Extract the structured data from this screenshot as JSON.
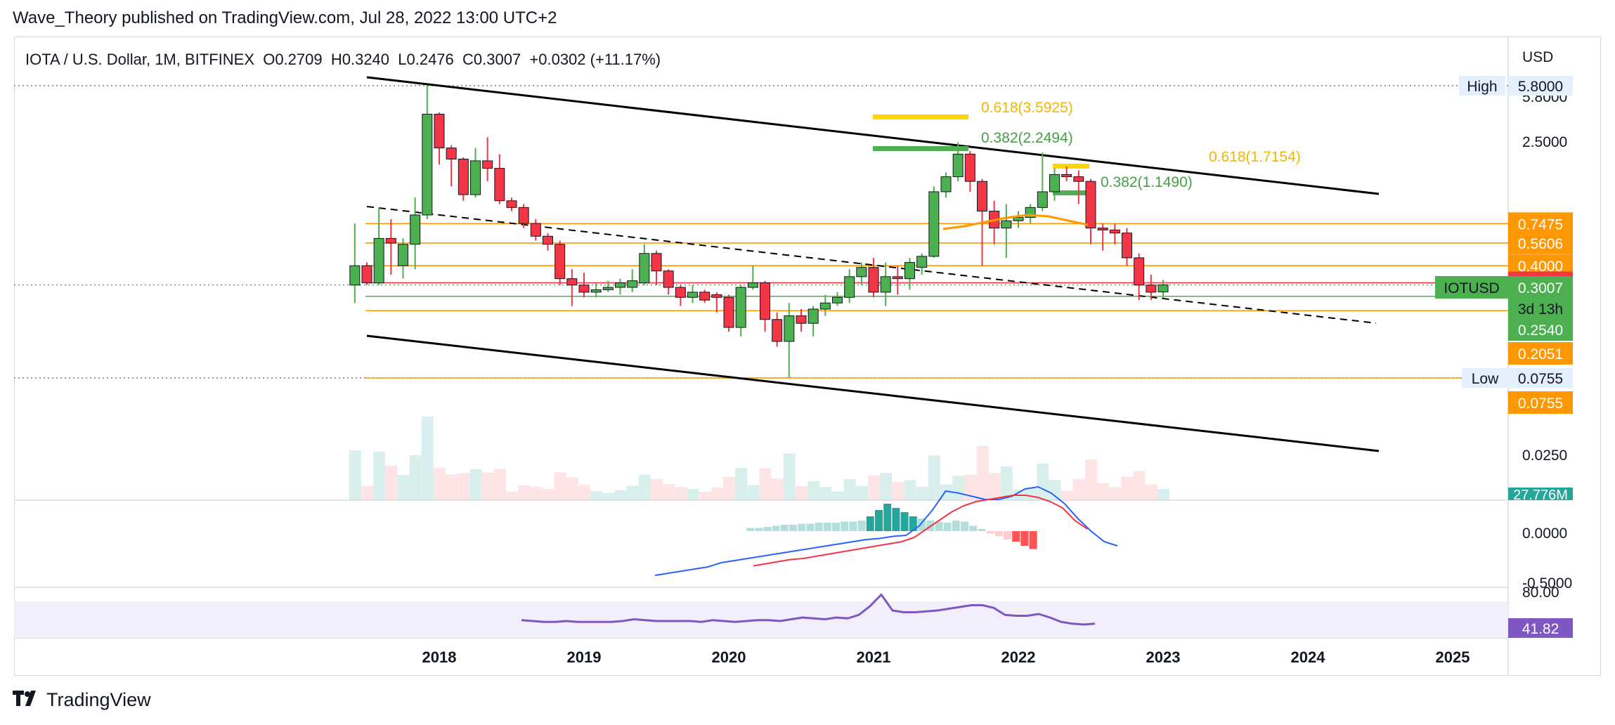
{
  "header": {
    "published": "Wave_Theory published on TradingView.com, Jul 28, 2022 13:00 UTC+2"
  },
  "legend": {
    "text": "IOTA / U.S. Dollar, 1M, BITFINEX  O0.2709  H0.3240  L0.2476  C0.3007  +0.0302 (+11.17%)"
  },
  "footer": {
    "brand": "TradingView",
    "logo": "TV-logo"
  },
  "colors": {
    "up": "#4caf50",
    "down": "#f23645",
    "orange": "#ff9800",
    "fib_yellow": "#ffd600",
    "fib_green": "#4caf50",
    "macd": "#2962ff",
    "signal": "#f23645",
    "rsi": "#7e57c2",
    "rsi_band": "#f2eefb"
  },
  "chart_data": {
    "type": "candlestick",
    "title": "IOTA / U.S. Dollar, 1M, BITFINEX",
    "price_axis": {
      "currency": "USD",
      "scale": "log",
      "ticks": [
        "5.8000",
        "2.5000",
        "0.0250"
      ]
    },
    "x_ticks": [
      "2018",
      "2019",
      "2020",
      "2021",
      "2022",
      "2023",
      "2024",
      "2025"
    ],
    "ohlc": {
      "O": "0.2709",
      "H": "0.3240",
      "L": "0.2476",
      "C": "0.3007",
      "change": "+0.0302 (+11.17%)"
    },
    "candles": [
      {
        "date": "2017-06",
        "o": 0.3,
        "h": 0.75,
        "l": 0.23,
        "c": 0.4
      },
      {
        "date": "2017-07",
        "o": 0.4,
        "h": 0.42,
        "l": 0.3,
        "c": 0.31
      },
      {
        "date": "2017-08",
        "o": 0.31,
        "h": 0.95,
        "l": 0.3,
        "c": 0.6
      },
      {
        "date": "2017-09",
        "o": 0.6,
        "h": 0.8,
        "l": 0.35,
        "c": 0.56
      },
      {
        "date": "2017-10",
        "o": 0.4,
        "h": 0.6,
        "l": 0.33,
        "c": 0.55
      },
      {
        "date": "2017-11",
        "o": 0.55,
        "h": 1.1,
        "l": 0.38,
        "c": 0.85
      },
      {
        "date": "2017-12",
        "o": 0.85,
        "h": 5.8,
        "l": 0.8,
        "c": 3.8
      },
      {
        "date": "2018-01",
        "o": 3.8,
        "h": 3.9,
        "l": 1.8,
        "c": 2.3
      },
      {
        "date": "2018-02",
        "o": 2.3,
        "h": 2.4,
        "l": 1.3,
        "c": 1.95
      },
      {
        "date": "2018-03",
        "o": 1.95,
        "h": 2.0,
        "l": 1.05,
        "c": 1.15
      },
      {
        "date": "2018-04",
        "o": 1.15,
        "h": 2.3,
        "l": 1.1,
        "c": 1.9
      },
      {
        "date": "2018-05",
        "o": 1.9,
        "h": 2.7,
        "l": 1.4,
        "c": 1.7
      },
      {
        "date": "2018-06",
        "o": 1.7,
        "h": 2.1,
        "l": 1.0,
        "c": 1.05
      },
      {
        "date": "2018-07",
        "o": 1.05,
        "h": 1.1,
        "l": 0.9,
        "c": 0.95
      },
      {
        "date": "2018-08",
        "o": 0.95,
        "h": 1.0,
        "l": 0.7,
        "c": 0.75
      },
      {
        "date": "2018-09",
        "o": 0.75,
        "h": 0.8,
        "l": 0.58,
        "c": 0.62
      },
      {
        "date": "2018-10",
        "o": 0.62,
        "h": 0.65,
        "l": 0.5,
        "c": 0.55
      },
      {
        "date": "2018-11",
        "o": 0.55,
        "h": 0.58,
        "l": 0.3,
        "c": 0.33
      },
      {
        "date": "2018-12",
        "o": 0.33,
        "h": 0.38,
        "l": 0.22,
        "c": 0.3
      },
      {
        "date": "2019-01",
        "o": 0.3,
        "h": 0.36,
        "l": 0.25,
        "c": 0.27
      },
      {
        "date": "2019-02",
        "o": 0.27,
        "h": 0.31,
        "l": 0.25,
        "c": 0.28
      },
      {
        "date": "2019-03",
        "o": 0.28,
        "h": 0.32,
        "l": 0.27,
        "c": 0.29
      },
      {
        "date": "2019-04",
        "o": 0.29,
        "h": 0.33,
        "l": 0.26,
        "c": 0.31
      },
      {
        "date": "2019-05",
        "o": 0.29,
        "h": 0.38,
        "l": 0.27,
        "c": 0.32
      },
      {
        "date": "2019-06",
        "o": 0.31,
        "h": 0.55,
        "l": 0.3,
        "c": 0.48
      },
      {
        "date": "2019-07",
        "o": 0.48,
        "h": 0.5,
        "l": 0.3,
        "c": 0.37
      },
      {
        "date": "2019-08",
        "o": 0.37,
        "h": 0.38,
        "l": 0.26,
        "c": 0.29
      },
      {
        "date": "2019-09",
        "o": 0.29,
        "h": 0.3,
        "l": 0.22,
        "c": 0.25
      },
      {
        "date": "2019-10",
        "o": 0.25,
        "h": 0.3,
        "l": 0.23,
        "c": 0.27
      },
      {
        "date": "2019-11",
        "o": 0.27,
        "h": 0.28,
        "l": 0.23,
        "c": 0.24
      },
      {
        "date": "2019-12",
        "o": 0.26,
        "h": 0.27,
        "l": 0.2,
        "c": 0.25
      },
      {
        "date": "2020-01",
        "o": 0.25,
        "h": 0.26,
        "l": 0.15,
        "c": 0.16
      },
      {
        "date": "2020-02",
        "o": 0.16,
        "h": 0.3,
        "l": 0.14,
        "c": 0.29
      },
      {
        "date": "2020-03",
        "o": 0.29,
        "h": 0.4,
        "l": 0.28,
        "c": 0.31
      },
      {
        "date": "2020-04",
        "o": 0.31,
        "h": 0.32,
        "l": 0.15,
        "c": 0.18
      },
      {
        "date": "2020-05",
        "o": 0.18,
        "h": 0.2,
        "l": 0.12,
        "c": 0.13
      },
      {
        "date": "2020-06",
        "o": 0.13,
        "h": 0.23,
        "l": 0.076,
        "c": 0.19
      },
      {
        "date": "2020-07",
        "o": 0.19,
        "h": 0.21,
        "l": 0.15,
        "c": 0.17
      },
      {
        "date": "2020-08",
        "o": 0.17,
        "h": 0.22,
        "l": 0.14,
        "c": 0.21
      },
      {
        "date": "2020-09",
        "o": 0.21,
        "h": 0.26,
        "l": 0.19,
        "c": 0.23
      },
      {
        "date": "2020-10",
        "o": 0.23,
        "h": 0.27,
        "l": 0.22,
        "c": 0.25
      },
      {
        "date": "2020-11",
        "o": 0.25,
        "h": 0.38,
        "l": 0.23,
        "c": 0.34
      },
      {
        "date": "2020-12",
        "o": 0.34,
        "h": 0.42,
        "l": 0.3,
        "c": 0.39
      },
      {
        "date": "2021-01",
        "o": 0.39,
        "h": 0.45,
        "l": 0.25,
        "c": 0.27
      },
      {
        "date": "2021-02",
        "o": 0.27,
        "h": 0.42,
        "l": 0.22,
        "c": 0.34
      },
      {
        "date": "2021-03",
        "o": 0.34,
        "h": 0.4,
        "l": 0.26,
        "c": 0.33
      },
      {
        "date": "2021-04",
        "o": 0.33,
        "h": 0.45,
        "l": 0.28,
        "c": 0.42
      },
      {
        "date": "2021-05",
        "o": 0.39,
        "h": 0.48,
        "l": 0.35,
        "c": 0.46
      },
      {
        "date": "2021-06",
        "o": 0.46,
        "h": 1.3,
        "l": 0.45,
        "c": 1.2
      },
      {
        "date": "2021-07",
        "o": 1.2,
        "h": 1.6,
        "l": 1.1,
        "c": 1.5
      },
      {
        "date": "2021-08",
        "o": 1.5,
        "h": 2.5,
        "l": 1.4,
        "c": 2.1
      },
      {
        "date": "2021-09",
        "o": 2.1,
        "h": 2.2,
        "l": 1.2,
        "c": 1.4
      },
      {
        "date": "2021-10",
        "o": 1.4,
        "h": 1.45,
        "l": 0.4,
        "c": 0.9
      },
      {
        "date": "2021-11",
        "o": 0.9,
        "h": 1.05,
        "l": 0.55,
        "c": 0.7
      },
      {
        "date": "2021-12",
        "o": 0.7,
        "h": 1.0,
        "l": 0.45,
        "c": 0.78
      },
      {
        "date": "2022-01",
        "o": 0.78,
        "h": 0.9,
        "l": 0.7,
        "c": 0.82
      },
      {
        "date": "2022-02",
        "o": 0.82,
        "h": 1.0,
        "l": 0.75,
        "c": 0.95
      },
      {
        "date": "2022-03",
        "o": 0.95,
        "h": 2.15,
        "l": 0.9,
        "c": 1.2
      },
      {
        "date": "2022-04",
        "o": 1.2,
        "h": 1.7,
        "l": 1.05,
        "c": 1.55
      },
      {
        "date": "2022-05",
        "o": 1.55,
        "h": 1.75,
        "l": 1.4,
        "c": 1.5
      },
      {
        "date": "2022-06",
        "o": 1.5,
        "h": 1.65,
        "l": 1.0,
        "c": 1.4
      },
      {
        "date": "2022-07",
        "o": 1.4,
        "h": 1.45,
        "l": 0.55,
        "c": 0.7
      },
      {
        "date": "2022-08",
        "o": 0.7,
        "h": 0.75,
        "l": 0.5,
        "c": 0.68
      },
      {
        "date": "2022-09",
        "o": 0.68,
        "h": 0.75,
        "l": 0.55,
        "c": 0.65
      },
      {
        "date": "2022-10",
        "o": 0.65,
        "h": 0.7,
        "l": 0.4,
        "c": 0.45
      },
      {
        "date": "2022-11",
        "o": 0.45,
        "h": 0.48,
        "l": 0.24,
        "c": 0.3
      },
      {
        "date": "2022-12",
        "o": 0.3,
        "h": 0.35,
        "l": 0.24,
        "c": 0.27
      },
      {
        "date": "2023-01",
        "o": 0.2709,
        "h": 0.324,
        "l": 0.2476,
        "c": 0.3007
      }
    ],
    "horizontal_levels": [
      {
        "value": 5.8,
        "label": "High",
        "tag": "5.8000",
        "style": "dotted"
      },
      {
        "value": 0.0755,
        "label": "Low",
        "tag": "0.0755",
        "style": "dotted"
      },
      {
        "value": 0.7475,
        "tag": "0.7475",
        "color": "orange"
      },
      {
        "value": 0.5606,
        "tag": "0.5606",
        "color": "orange"
      },
      {
        "value": 0.4,
        "tag": "0.4000",
        "color": "orange"
      },
      {
        "value": 0.3103,
        "tag": "0.3103",
        "color": "red"
      },
      {
        "value": 0.3007,
        "tag": "0.3007",
        "symbol": "IOTUSD",
        "countdown": "3d 13h",
        "color": "green"
      },
      {
        "value": 0.254,
        "tag": "0.2540",
        "color": "green"
      },
      {
        "value": 0.2051,
        "tag": "0.2051",
        "color": "orange"
      },
      {
        "value": 0.0755,
        "tag": "0.0755",
        "color": "orange"
      }
    ],
    "fib_labels": [
      {
        "text": "0.618(3.5925)",
        "color": "yellow"
      },
      {
        "text": "0.382(2.2494)",
        "color": "green"
      },
      {
        "text": "0.618(1.7154)",
        "color": "yellow"
      },
      {
        "text": "0.382(1.1490)",
        "color": "green"
      }
    ],
    "volume_tag": "27.776M",
    "macd": {
      "ticks": [
        "0.0000",
        "-0.5000"
      ],
      "histogram": [
        0.03,
        0.03,
        0.04,
        0.05,
        0.06,
        0.06,
        0.07,
        0.07,
        0.08,
        0.08,
        0.08,
        0.09,
        0.09,
        0.1,
        0.14,
        0.2,
        0.26,
        0.22,
        0.18,
        0.14,
        0.12,
        0.1,
        0.09,
        0.08,
        0.1,
        0.09,
        0.05,
        0.02,
        -0.02,
        -0.05,
        -0.08,
        -0.1,
        -0.14,
        -0.17
      ],
      "macd_line": [
        -0.42,
        -0.4,
        -0.38,
        -0.36,
        -0.34,
        -0.3,
        -0.28,
        -0.26,
        -0.24,
        -0.22,
        -0.2,
        -0.18,
        -0.16,
        -0.14,
        -0.12,
        -0.1,
        -0.08,
        -0.07,
        -0.05,
        -0.04,
        0.05,
        0.2,
        0.38,
        0.36,
        0.33,
        0.3,
        0.3,
        0.33,
        0.4,
        0.42,
        0.36,
        0.26,
        0.12,
        0.0,
        -0.1,
        -0.14
      ],
      "signal_line": [
        -0.33,
        -0.31,
        -0.29,
        -0.27,
        -0.26,
        -0.24,
        -0.22,
        -0.2,
        -0.18,
        -0.16,
        -0.14,
        -0.12,
        -0.1,
        -0.06,
        0.02,
        0.1,
        0.18,
        0.24,
        0.28,
        0.3,
        0.32,
        0.34,
        0.34,
        0.32,
        0.28,
        0.22,
        0.1,
        0.02
      ]
    },
    "rsi": {
      "ticks": [
        "80.00"
      ],
      "value_tag": "41.82",
      "values": [
        49,
        48,
        47,
        47,
        48,
        47,
        47,
        47,
        47,
        48,
        50,
        49,
        48,
        48,
        48,
        48,
        47,
        49,
        48,
        47,
        48,
        49,
        49,
        48,
        50,
        52,
        51,
        50,
        52,
        51,
        55,
        65,
        78,
        60,
        58,
        58,
        59,
        60,
        62,
        64,
        66,
        66,
        63,
        55,
        54,
        54,
        56,
        52,
        47,
        45,
        44,
        45
      ]
    }
  }
}
